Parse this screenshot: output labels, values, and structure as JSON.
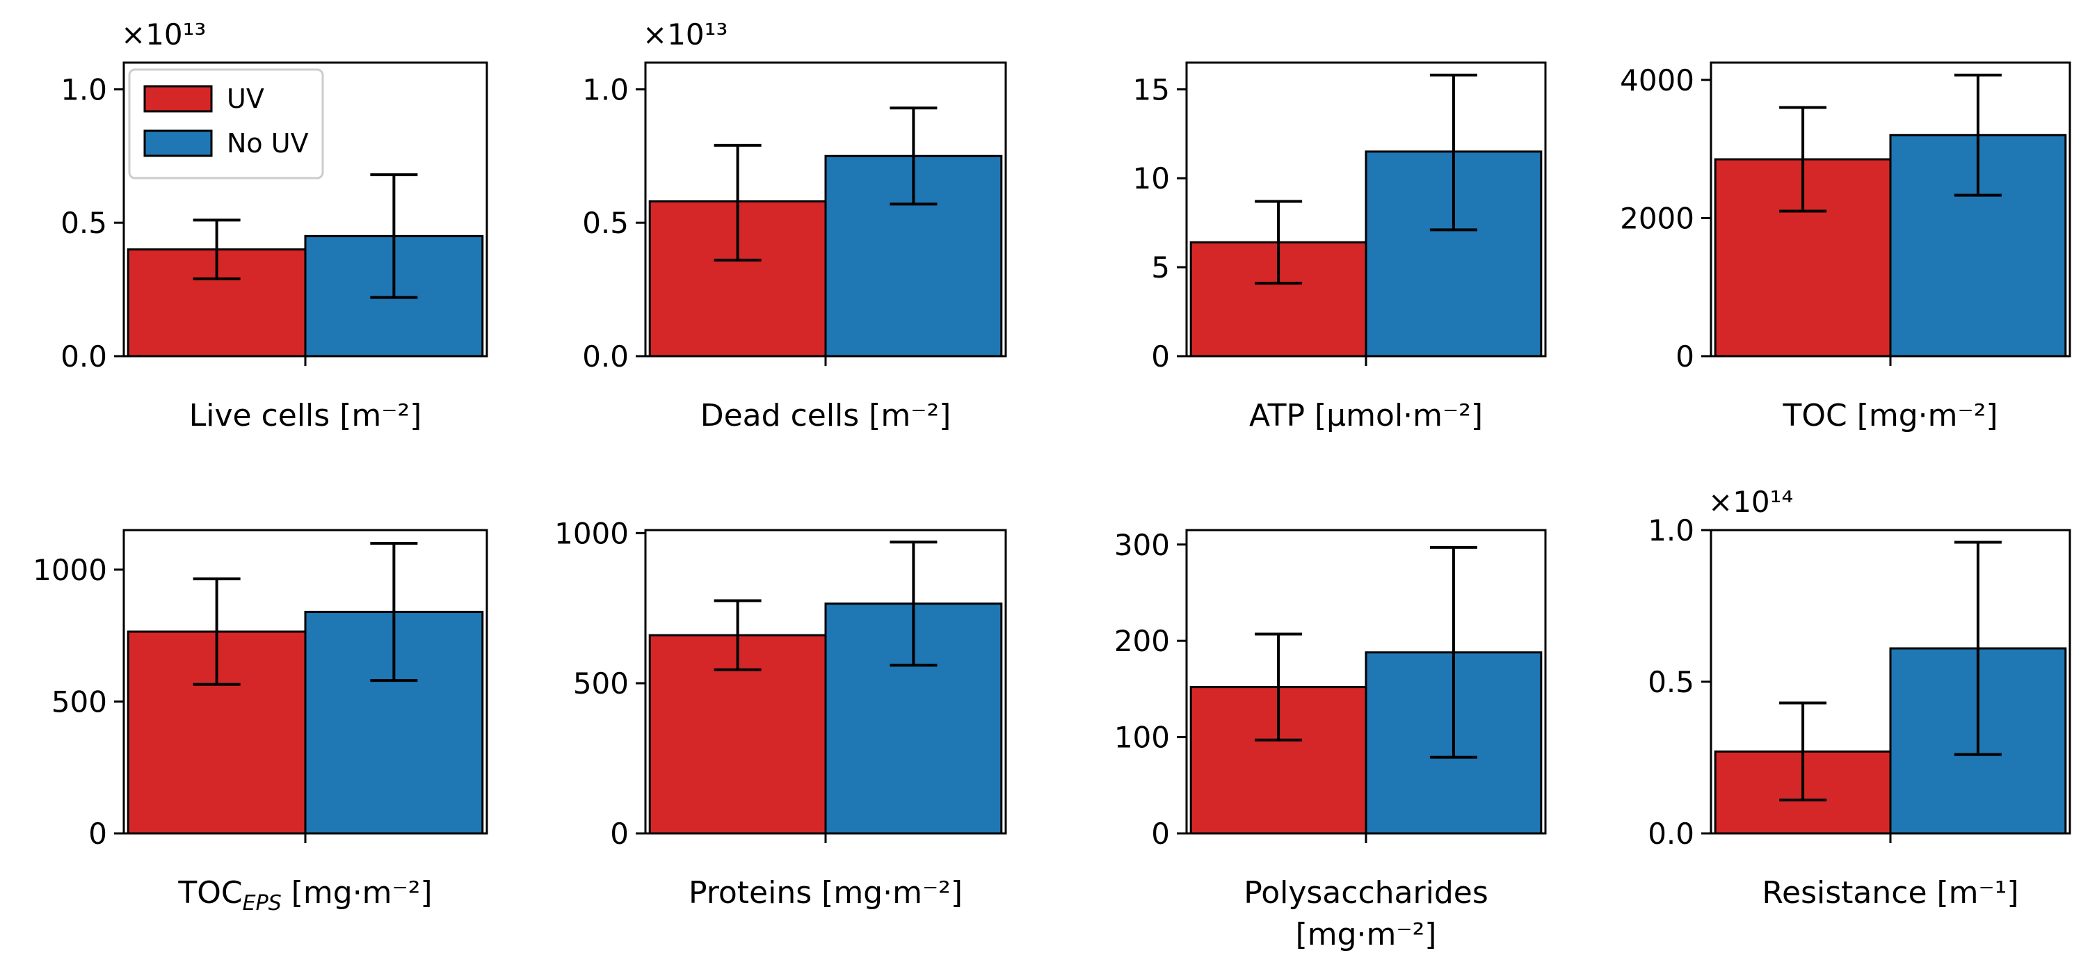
{
  "chart_data": [
    {
      "type": "bar",
      "xlabel": "Live cells [m⁻²]",
      "ylabel": "",
      "offset_text": "×10¹³",
      "ylim": [
        0,
        1.1
      ],
      "yticks": [
        0.0,
        0.5,
        1.0
      ],
      "ytick_labels": [
        "0.0",
        "0.5",
        "1.0"
      ],
      "legend": true,
      "legend_position": "top-left",
      "series": [
        {
          "name": "UV",
          "value": 0.4,
          "err_low": 0.29,
          "err_high": 0.51
        },
        {
          "name": "No UV",
          "value": 0.45,
          "err_low": 0.22,
          "err_high": 0.68
        }
      ]
    },
    {
      "type": "bar",
      "xlabel": "Dead cells [m⁻²]",
      "ylabel": "",
      "offset_text": "×10¹³",
      "ylim": [
        0,
        1.1
      ],
      "yticks": [
        0.0,
        0.5,
        1.0
      ],
      "ytick_labels": [
        "0.0",
        "0.5",
        "1.0"
      ],
      "legend": false,
      "series": [
        {
          "name": "UV",
          "value": 0.58,
          "err_low": 0.36,
          "err_high": 0.79
        },
        {
          "name": "No UV",
          "value": 0.75,
          "err_low": 0.57,
          "err_high": 0.93
        }
      ]
    },
    {
      "type": "bar",
      "xlabel": "ATP [µmol·m⁻²]",
      "ylabel": "",
      "offset_text": "",
      "ylim": [
        0,
        16.5
      ],
      "yticks": [
        0,
        5,
        10,
        15
      ],
      "ytick_labels": [
        "0",
        "5",
        "10",
        "15"
      ],
      "legend": false,
      "series": [
        {
          "name": "UV",
          "value": 6.4,
          "err_low": 4.1,
          "err_high": 8.7
        },
        {
          "name": "No UV",
          "value": 11.5,
          "err_low": 7.1,
          "err_high": 15.8
        }
      ]
    },
    {
      "type": "bar",
      "xlabel": "TOC [mg·m⁻²]",
      "ylabel": "",
      "offset_text": "",
      "ylim": [
        0,
        4250
      ],
      "yticks": [
        0,
        2000,
        4000
      ],
      "ytick_labels": [
        "0",
        "2000",
        "4000"
      ],
      "legend": false,
      "series": [
        {
          "name": "UV",
          "value": 2850,
          "err_low": 2100,
          "err_high": 3600
        },
        {
          "name": "No UV",
          "value": 3200,
          "err_low": 2330,
          "err_high": 4070
        }
      ]
    },
    {
      "type": "bar",
      "xlabel": "TOC",
      "xlabel_sub": "EPS",
      "xlabel_rest": " [mg·m⁻²]",
      "ylabel": "",
      "offset_text": "",
      "ylim": [
        0,
        1150
      ],
      "yticks": [
        0,
        500,
        1000
      ],
      "ytick_labels": [
        "0",
        "500",
        "1000"
      ],
      "legend": false,
      "series": [
        {
          "name": "UV",
          "value": 765,
          "err_low": 565,
          "err_high": 965
        },
        {
          "name": "No UV",
          "value": 840,
          "err_low": 580,
          "err_high": 1100
        }
      ]
    },
    {
      "type": "bar",
      "xlabel": "Proteins [mg·m⁻²]",
      "ylabel": "",
      "offset_text": "",
      "ylim": [
        0,
        1010
      ],
      "yticks": [
        0,
        500,
        1000
      ],
      "ytick_labels": [
        "0",
        "500",
        "1000"
      ],
      "legend": false,
      "series": [
        {
          "name": "UV",
          "value": 660,
          "err_low": 545,
          "err_high": 775
        },
        {
          "name": "No UV",
          "value": 765,
          "err_low": 560,
          "err_high": 970
        }
      ]
    },
    {
      "type": "bar",
      "xlabel": "Polysaccharides",
      "xlabel_line2": "[mg·m⁻²]",
      "ylabel": "",
      "offset_text": "",
      "ylim": [
        0,
        315
      ],
      "yticks": [
        0,
        100,
        200,
        300
      ],
      "ytick_labels": [
        "0",
        "100",
        "200",
        "300"
      ],
      "legend": false,
      "series": [
        {
          "name": "UV",
          "value": 152,
          "err_low": 97,
          "err_high": 207
        },
        {
          "name": "No UV",
          "value": 188,
          "err_low": 79,
          "err_high": 297
        }
      ]
    },
    {
      "type": "bar",
      "xlabel": "Resistance [m⁻¹]",
      "ylabel": "",
      "offset_text": "×10¹⁴",
      "ylim": [
        0,
        1.0
      ],
      "yticks": [
        0.0,
        0.5,
        1.0
      ],
      "ytick_labels": [
        "0.0",
        "0.5",
        "1.0"
      ],
      "legend": false,
      "series": [
        {
          "name": "UV",
          "value": 0.27,
          "err_low": 0.11,
          "err_high": 0.43
        },
        {
          "name": "No UV",
          "value": 0.61,
          "err_low": 0.26,
          "err_high": 0.96
        }
      ]
    }
  ],
  "legend": {
    "entries": [
      {
        "label": "UV",
        "color": "#d62728"
      },
      {
        "label": "No UV",
        "color": "#1f77b4"
      }
    ]
  },
  "colors": {
    "UV": "#d62728",
    "No UV": "#1f77b4"
  }
}
